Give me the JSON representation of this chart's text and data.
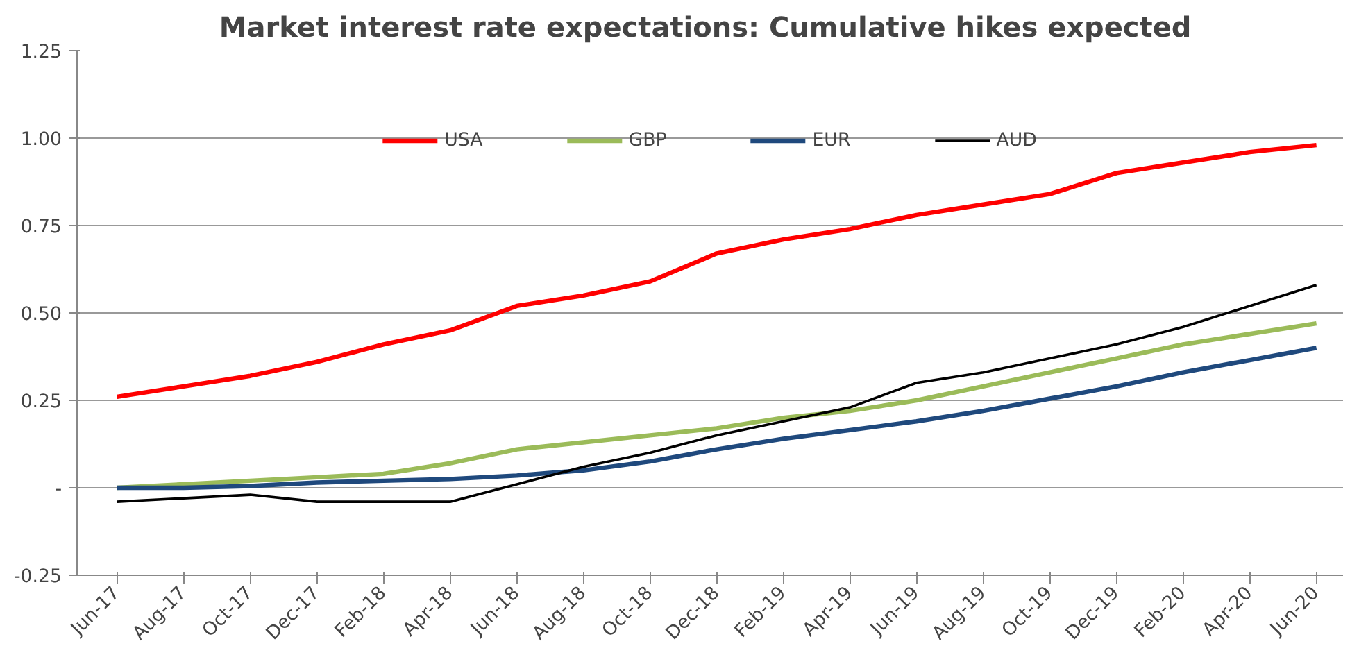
{
  "chart_data": {
    "type": "line",
    "title": "Market interest rate expectations:  Cumulative hikes expected",
    "categories": [
      "Jun-17",
      "Aug-17",
      "Oct-17",
      "Dec-17",
      "Feb-18",
      "Apr-18",
      "Jun-18",
      "Aug-18",
      "Oct-18",
      "Dec-18",
      "Feb-19",
      "Apr-19",
      "Jun-19",
      "Aug-19",
      "Oct-19",
      "Dec-19",
      "Feb-20",
      "Apr-20",
      "Jun-20"
    ],
    "series": [
      {
        "name": "USA",
        "color": "#ff0000",
        "values": [
          0.26,
          0.29,
          0.32,
          0.36,
          0.41,
          0.45,
          0.52,
          0.55,
          0.59,
          0.67,
          0.71,
          0.74,
          0.78,
          0.81,
          0.84,
          0.9,
          0.93,
          0.96,
          0.98
        ]
      },
      {
        "name": "GBP",
        "color": "#9bbb59",
        "values": [
          0,
          0.01,
          0.02,
          0.03,
          0.04,
          0.07,
          0.11,
          0.13,
          0.15,
          0.17,
          0.2,
          0.22,
          0.25,
          0.29,
          0.33,
          0.37,
          0.41,
          0.44,
          0.47
        ]
      },
      {
        "name": "EUR",
        "color": "#1f497d",
        "values": [
          0,
          0,
          0.005,
          0.015,
          0.02,
          0.025,
          0.035,
          0.05,
          0.075,
          0.11,
          0.14,
          0.165,
          0.19,
          0.22,
          0.255,
          0.29,
          0.33,
          0.365,
          0.4
        ]
      },
      {
        "name": "AUD",
        "color": "#000000",
        "values": [
          -0.04,
          -0.03,
          -0.02,
          -0.04,
          -0.04,
          -0.04,
          0.01,
          0.06,
          0.1,
          0.15,
          0.19,
          0.23,
          0.3,
          0.33,
          0.37,
          0.41,
          0.46,
          0.52,
          0.58
        ]
      }
    ],
    "ylim": [
      -0.25,
      1.25
    ],
    "yticks": [
      -0.25,
      {
        "value": 0,
        "label": "-"
      },
      0.25,
      {
        "value": 0.5,
        "label": "0.50"
      },
      0.75,
      {
        "value": 1,
        "label": "1.00"
      },
      1.25
    ],
    "grid": "y",
    "legend": "top",
    "line_style": "solid",
    "marker": "none"
  }
}
